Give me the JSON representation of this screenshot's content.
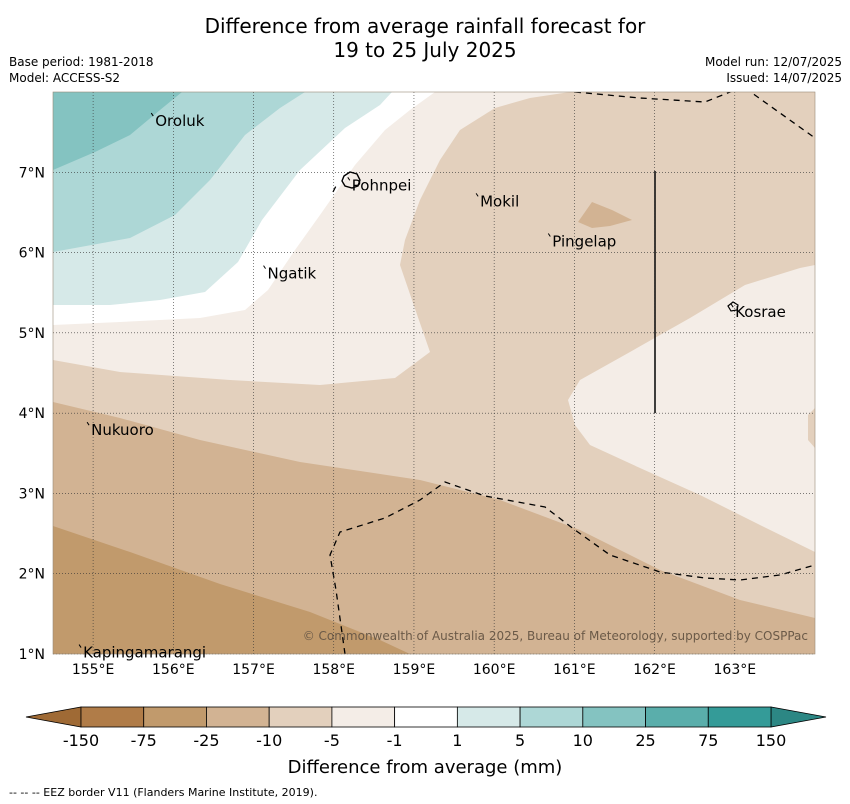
{
  "title": {
    "line1": "Difference from average rainfall forecast for",
    "line2": "19 to 25 July 2025"
  },
  "meta_left": {
    "base_period": "Base period: 1981-2018",
    "model": "Model: ACCESS-S2"
  },
  "meta_right": {
    "model_run": "Model run: 12/07/2025",
    "issued": "Issued: 14/07/2025"
  },
  "map": {
    "lon_ticks": [
      "155°E",
      "156°E",
      "157°E",
      "158°E",
      "159°E",
      "160°E",
      "161°E",
      "162°E",
      "163°E"
    ],
    "lat_ticks": [
      "1°N",
      "2°N",
      "3°N",
      "4°N",
      "5°N",
      "6°N",
      "7°N"
    ],
    "lon_values": [
      155,
      156,
      157,
      158,
      159,
      160,
      161,
      162,
      163
    ],
    "lat_values": [
      1,
      2,
      3,
      4,
      5,
      6,
      7
    ],
    "lon_range": [
      154.5,
      164.0
    ],
    "lat_range": [
      1.0,
      8.0
    ],
    "places": [
      {
        "name": "Oroluk",
        "lon": 155.75,
        "lat": 7.7
      },
      {
        "name": "Pohnpei",
        "lon": 158.2,
        "lat": 6.9
      },
      {
        "name": "Mokil",
        "lon": 159.8,
        "lat": 6.7
      },
      {
        "name": "Pingelap",
        "lon": 160.7,
        "lat": 6.2
      },
      {
        "name": "Ngatik",
        "lon": 157.15,
        "lat": 5.8
      },
      {
        "name": "Kosrae",
        "lon": 162.98,
        "lat": 5.32
      },
      {
        "name": "Nukuoro",
        "lon": 154.95,
        "lat": 3.85
      },
      {
        "name": "Kapingamarangi",
        "lon": 154.85,
        "lat": 1.08
      }
    ],
    "copyright": "© Commonwealth of Australia 2025, Bureau of Meteorology, supported by COSPPac"
  },
  "colorbar": {
    "labels": [
      "-150",
      "-75",
      "-25",
      "-10",
      "-5",
      "-1",
      "1",
      "5",
      "10",
      "25",
      "75",
      "150"
    ],
    "colors": [
      "#b07c48",
      "#c19a6c",
      "#d2b393",
      "#e3d0bd",
      "#f4ede7",
      "#ffffff",
      "#d6e9e8",
      "#add7d6",
      "#84c3c1",
      "#5aaeab",
      "#349b98"
    ],
    "under_color": "#9f6a35",
    "over_color": "#2c8784",
    "title": "Difference from average (mm)"
  },
  "footer": "--  --  -- EEZ border V11 (Flanders Marine Institute, 2019)."
}
